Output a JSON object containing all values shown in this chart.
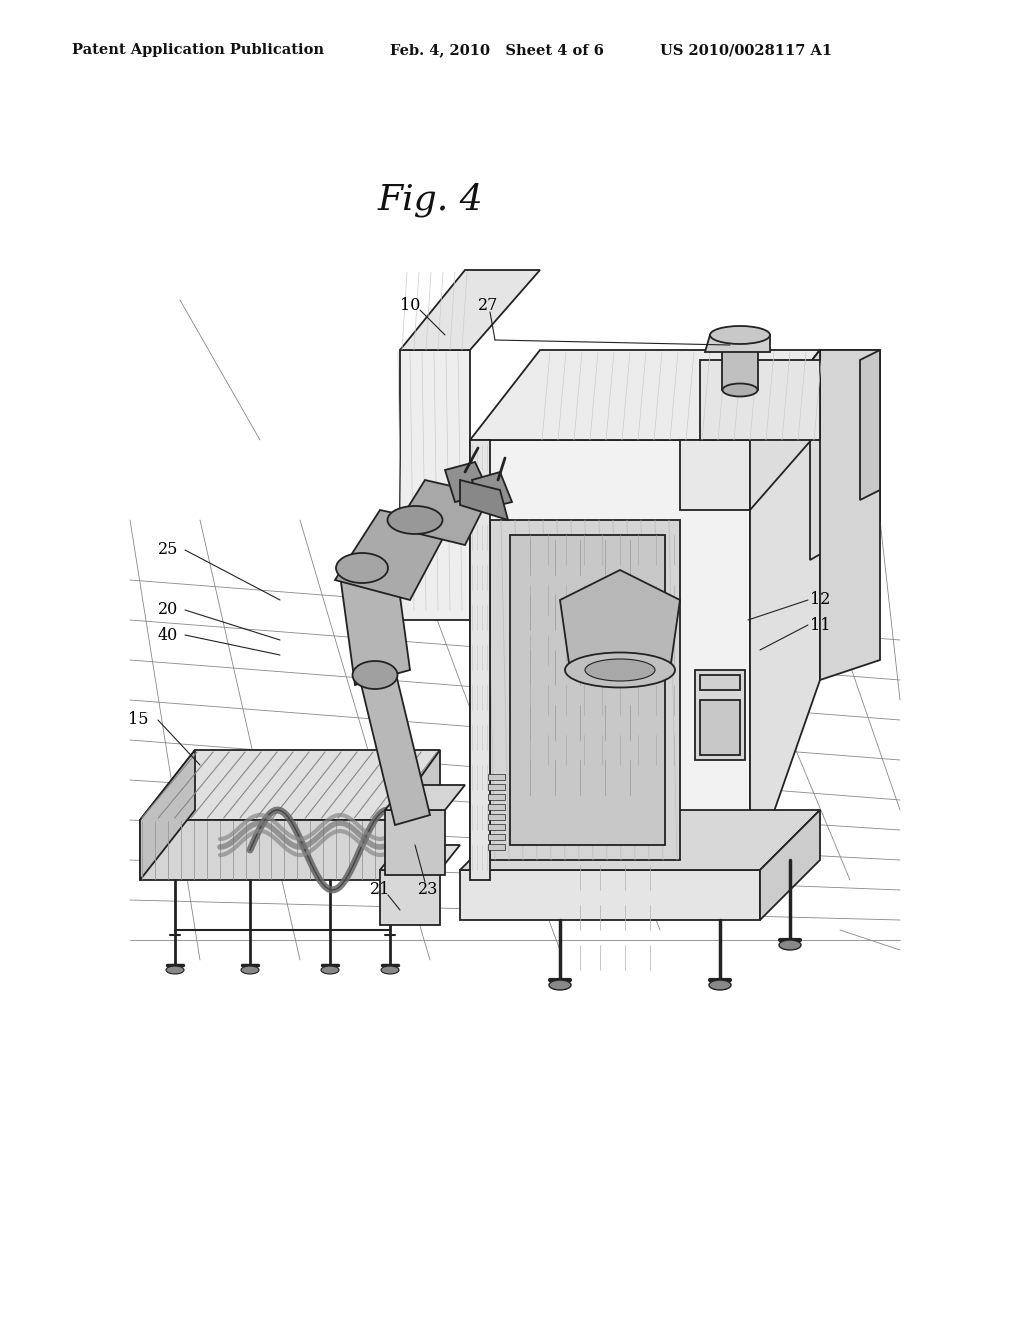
{
  "background_color": "#ffffff",
  "title_header_left": "Patent Application Publication",
  "title_header_mid": "Feb. 4, 2010   Sheet 4 of 6",
  "title_header_right": "US 2010/0028117 A1",
  "figure_title": "Fig. 4",
  "header_fontsize": 10.5,
  "fig_title_fontsize": 26,
  "label_fontsize": 11.5,
  "line_color": "#222222",
  "light_gray": "#e8e8e8",
  "mid_gray": "#cccccc",
  "dark_gray": "#aaaaaa",
  "hatch_color": "#999999"
}
